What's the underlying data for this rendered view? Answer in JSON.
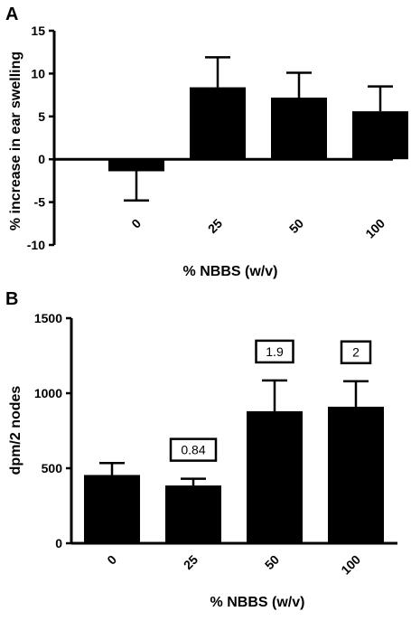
{
  "chart_data": [
    {
      "panel": "A",
      "type": "bar",
      "categories": [
        "0",
        "25",
        "50",
        "100"
      ],
      "values": [
        -1.4,
        8.4,
        7.2,
        5.6
      ],
      "errors": [
        3.4,
        3.5,
        2.9,
        2.9
      ],
      "xlabel": "% NBBS (w/v)",
      "ylabel": "% increase in ear swelling",
      "ylim": [
        -10,
        15
      ],
      "yticks": [
        "-10",
        "-5",
        "0",
        "5",
        "10",
        "15"
      ],
      "bar_color": "#000000",
      "grid": false
    },
    {
      "panel": "B",
      "type": "bar",
      "categories": [
        "0",
        "25",
        "50",
        "100"
      ],
      "values": [
        455,
        385,
        880,
        910
      ],
      "errors": [
        80,
        45,
        205,
        170
      ],
      "annotations": [
        "",
        "0.84",
        "1.9",
        "2"
      ],
      "xlabel": "% NBBS (w/v)",
      "ylabel": "dpm/2 nodes",
      "ylim": [
        0,
        1500
      ],
      "yticks": [
        "0",
        "500",
        "1000",
        "1500"
      ],
      "bar_color": "#000000",
      "grid": false
    }
  ]
}
